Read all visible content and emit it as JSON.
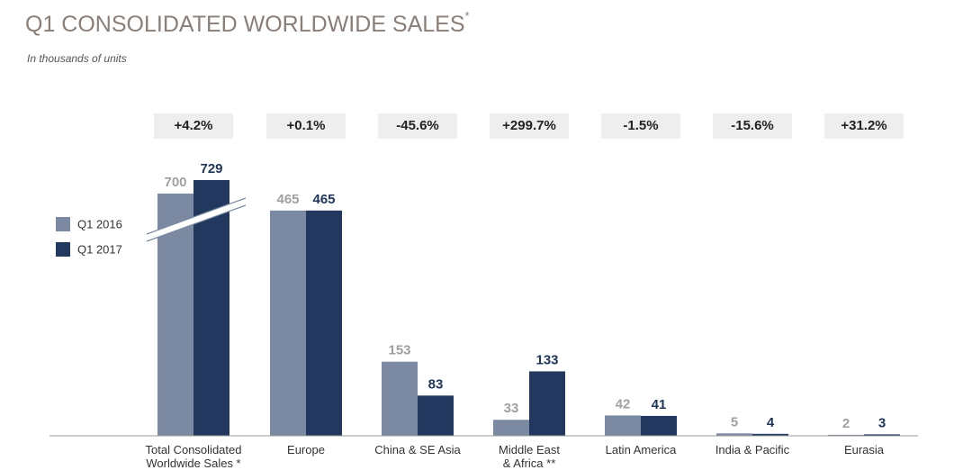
{
  "chart_data": {
    "type": "bar",
    "title": "Q1 CONSOLIDATED WORLDWIDE SALES",
    "title_note": "*",
    "subtitle": "In thousands of units",
    "categories": [
      "Total Consolidated\nWorldwide Sales *",
      "Europe",
      "China & SE Asia",
      "Middle East\n& Africa **",
      "Latin America",
      "India & Pacific",
      "Eurasia"
    ],
    "series": [
      {
        "name": "Q1 2016",
        "color": "#7b8aa2",
        "values": [
          700,
          465,
          153,
          33,
          42,
          5,
          2
        ]
      },
      {
        "name": "Q1 2017",
        "color": "#22385e",
        "values": [
          729,
          465,
          83,
          133,
          41,
          4,
          3
        ]
      }
    ],
    "annotations": [
      "+4.2%",
      "+0.1%",
      "-45.6%",
      "+299.7%",
      "-1.5%",
      "-15.6%",
      "+31.2%"
    ],
    "ylim": [
      0,
      500
    ],
    "axis_break": true,
    "legend": "left"
  }
}
